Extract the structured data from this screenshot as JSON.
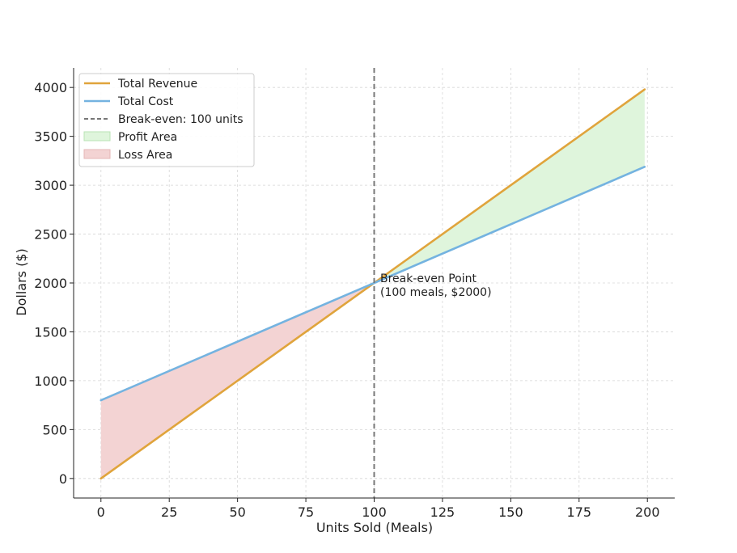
{
  "chart_data": {
    "type": "line",
    "title": "",
    "xlabel": "Units Sold (Meals)",
    "ylabel": "Dollars ($)",
    "xlim": [
      -10,
      210
    ],
    "ylim": [
      -200,
      4200
    ],
    "xticks": [
      0,
      25,
      50,
      75,
      100,
      125,
      150,
      175,
      200
    ],
    "yticks": [
      0,
      500,
      1000,
      1500,
      2000,
      2500,
      3000,
      3500,
      4000
    ],
    "grid": true,
    "legend_position": "top-left",
    "series": [
      {
        "name": "Total Revenue",
        "color": "#e0a43c",
        "x": [
          0,
          199
        ],
        "y": [
          0,
          3980
        ]
      },
      {
        "name": "Total Cost",
        "color": "#74b3e0",
        "x": [
          0,
          199
        ],
        "y": [
          800,
          3188
        ]
      }
    ],
    "break_even": {
      "name": "Break-even: 100 units",
      "x": 100,
      "y": 2000,
      "color": "#777777"
    },
    "areas": [
      {
        "name": "Profit Area",
        "color": "#dff5dc"
      },
      {
        "name": "Loss Area",
        "color": "#f3d3d3"
      }
    ],
    "annotation": {
      "lines": [
        "Break-even Point",
        "(100 meals, $2000)"
      ]
    }
  }
}
